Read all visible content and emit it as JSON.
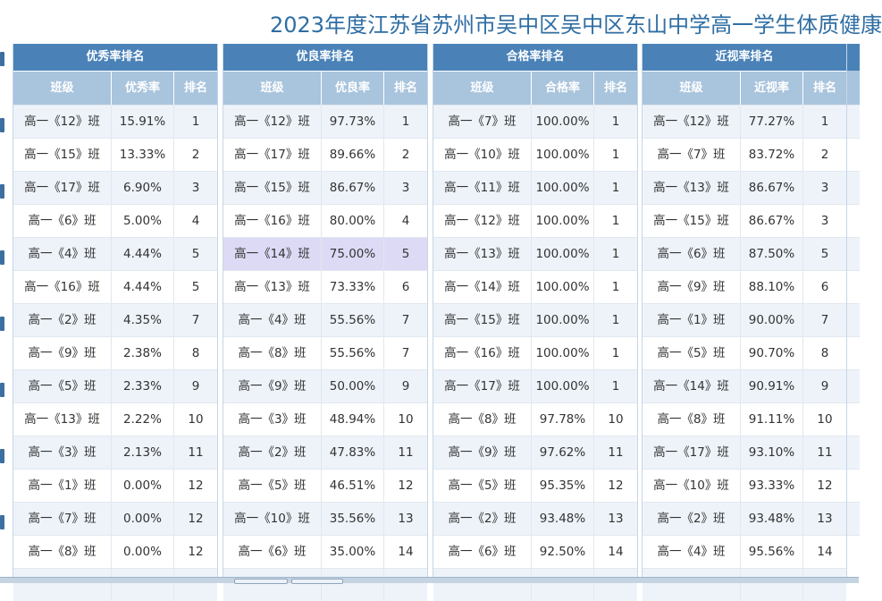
{
  "page": {
    "title": "2023年度江苏省苏州市吴中区吴中区东山中学高一学生体质健康"
  },
  "panels": [
    {
      "title": "优秀率排名",
      "headers": [
        "班级",
        "优秀率",
        "排名"
      ],
      "rows": [
        [
          "高一《12》班",
          "15.91%",
          "1"
        ],
        [
          "高一《15》班",
          "13.33%",
          "2"
        ],
        [
          "高一《17》班",
          "6.90%",
          "3"
        ],
        [
          "高一《6》班",
          "5.00%",
          "4"
        ],
        [
          "高一《4》班",
          "4.44%",
          "5"
        ],
        [
          "高一《16》班",
          "4.44%",
          "5"
        ],
        [
          "高一《2》班",
          "4.35%",
          "7"
        ],
        [
          "高一《9》班",
          "2.38%",
          "8"
        ],
        [
          "高一《5》班",
          "2.33%",
          "9"
        ],
        [
          "高一《13》班",
          "2.22%",
          "10"
        ],
        [
          "高一《3》班",
          "2.13%",
          "11"
        ],
        [
          "高一《1》班",
          "0.00%",
          "12"
        ],
        [
          "高一《7》班",
          "0.00%",
          "12"
        ],
        [
          "高一《8》班",
          "0.00%",
          "12"
        ],
        [
          "",
          "",
          ""
        ]
      ]
    },
    {
      "title": "优良率排名",
      "headers": [
        "班级",
        "优良率",
        "排名"
      ],
      "rows": [
        [
          "高一《12》班",
          "97.73%",
          "1"
        ],
        [
          "高一《17》班",
          "89.66%",
          "2"
        ],
        [
          "高一《15》班",
          "86.67%",
          "3"
        ],
        [
          "高一《16》班",
          "80.00%",
          "4"
        ],
        [
          "高一《14》班",
          "75.00%",
          "5"
        ],
        [
          "高一《13》班",
          "73.33%",
          "6"
        ],
        [
          "高一《4》班",
          "55.56%",
          "7"
        ],
        [
          "高一《8》班",
          "55.56%",
          "7"
        ],
        [
          "高一《9》班",
          "50.00%",
          "9"
        ],
        [
          "高一《3》班",
          "48.94%",
          "10"
        ],
        [
          "高一《2》班",
          "47.83%",
          "11"
        ],
        [
          "高一《5》班",
          "46.51%",
          "12"
        ],
        [
          "高一《10》班",
          "35.56%",
          "13"
        ],
        [
          "高一《6》班",
          "35.00%",
          "14"
        ],
        [
          "",
          "",
          ""
        ]
      ]
    },
    {
      "title": "合格率排名",
      "headers": [
        "班级",
        "合格率",
        "排名"
      ],
      "rows": [
        [
          "高一《7》班",
          "100.00%",
          "1"
        ],
        [
          "高一《10》班",
          "100.00%",
          "1"
        ],
        [
          "高一《11》班",
          "100.00%",
          "1"
        ],
        [
          "高一《12》班",
          "100.00%",
          "1"
        ],
        [
          "高一《13》班",
          "100.00%",
          "1"
        ],
        [
          "高一《14》班",
          "100.00%",
          "1"
        ],
        [
          "高一《15》班",
          "100.00%",
          "1"
        ],
        [
          "高一《16》班",
          "100.00%",
          "1"
        ],
        [
          "高一《17》班",
          "100.00%",
          "1"
        ],
        [
          "高一《8》班",
          "97.78%",
          "10"
        ],
        [
          "高一《9》班",
          "97.62%",
          "11"
        ],
        [
          "高一《5》班",
          "95.35%",
          "12"
        ],
        [
          "高一《2》班",
          "93.48%",
          "13"
        ],
        [
          "高一《6》班",
          "92.50%",
          "14"
        ],
        [
          "",
          "",
          ""
        ]
      ]
    },
    {
      "title": "近视率排名",
      "headers": [
        "班级",
        "近视率",
        "排名"
      ],
      "rows": [
        [
          "高一《12》班",
          "77.27%",
          "1"
        ],
        [
          "高一《7》班",
          "83.72%",
          "2"
        ],
        [
          "高一《13》班",
          "86.67%",
          "3"
        ],
        [
          "高一《15》班",
          "86.67%",
          "3"
        ],
        [
          "高一《6》班",
          "87.50%",
          "5"
        ],
        [
          "高一《9》班",
          "88.10%",
          "6"
        ],
        [
          "高一《1》班",
          "90.00%",
          "7"
        ],
        [
          "高一《5》班",
          "90.70%",
          "8"
        ],
        [
          "高一《14》班",
          "90.91%",
          "9"
        ],
        [
          "高一《8》班",
          "91.11%",
          "10"
        ],
        [
          "高一《17》班",
          "93.10%",
          "11"
        ],
        [
          "高一《10》班",
          "93.33%",
          "12"
        ],
        [
          "高一《2》班",
          "93.48%",
          "13"
        ],
        [
          "高一《4》班",
          "95.56%",
          "14"
        ],
        [
          "",
          "",
          ""
        ]
      ]
    }
  ],
  "highlight": {
    "panel": 1,
    "row": 4
  }
}
